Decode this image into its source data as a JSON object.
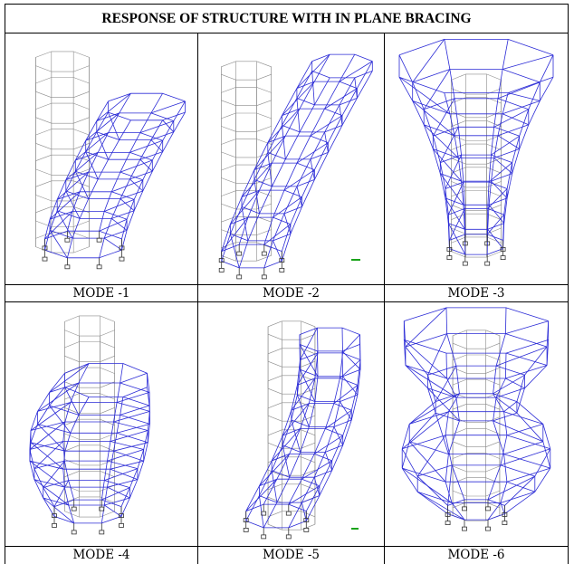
{
  "title": "RESPONSE OF STRUCTURE WITH IN PLANE BRACING",
  "panels": [
    {
      "caption": "MODE -1",
      "mode": 1
    },
    {
      "caption": "MODE -2",
      "mode": 2
    },
    {
      "caption": "MODE -3",
      "mode": 3
    },
    {
      "caption": "MODE -4",
      "mode": 4
    },
    {
      "caption": "MODE -5",
      "mode": 5
    },
    {
      "caption": "MODE -6",
      "mode": 6
    }
  ],
  "colors": {
    "deformed": "#2b2bd6",
    "undeformed": "#8c8c8c",
    "support": "#333333"
  }
}
